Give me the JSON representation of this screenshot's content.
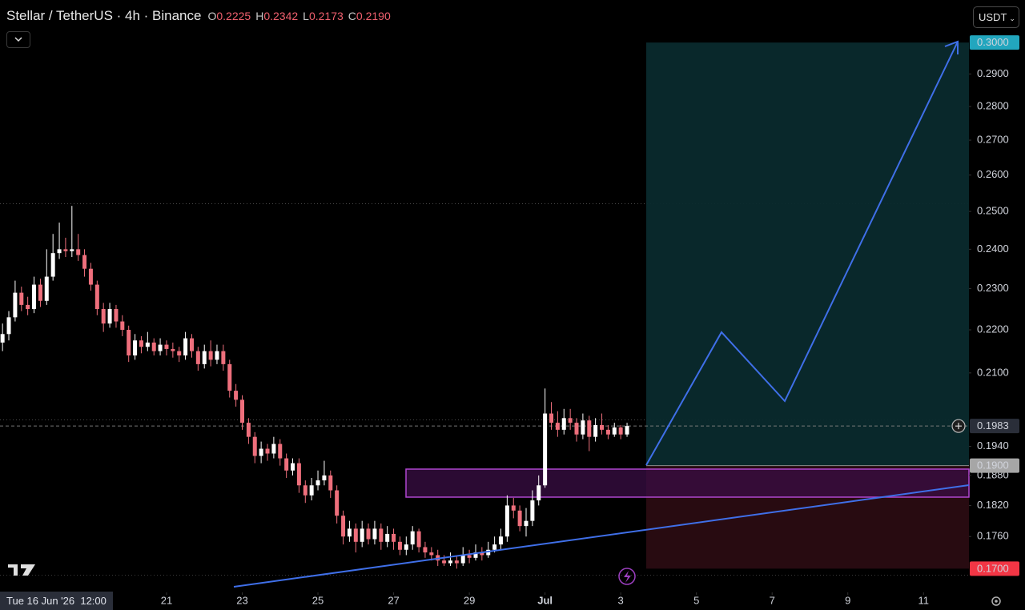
{
  "header": {
    "symbol": "Stellar / TetherUS · 4h · Binance",
    "ohlc": [
      {
        "name": "O",
        "text": "0.2225"
      },
      {
        "name": "H",
        "text": "0.2342"
      },
      {
        "name": "L",
        "text": "0.2173"
      },
      {
        "name": "C",
        "text": "0.2190"
      }
    ],
    "currency": "USDT"
  },
  "chart_data": {
    "type": "candlestick",
    "log": true,
    "up_color": "#ffffff",
    "down_color": "#ee6f7c",
    "xlim": [
      16.6,
      42.2
    ],
    "ylim": [
      0.1657,
      0.3141
    ],
    "xticks": [
      21,
      23,
      25,
      27,
      29,
      {
        "value": 31,
        "label": "Jul"
      },
      {
        "value": 33,
        "label": "3"
      },
      {
        "value": 35,
        "label": "5"
      },
      {
        "value": 37,
        "label": "7"
      },
      {
        "value": 39,
        "label": "9"
      },
      {
        "value": 41,
        "label": "11"
      }
    ],
    "yticks": [
      {
        "value": 0.29,
        "label": "0.2900"
      },
      {
        "value": 0.28,
        "label": "0.2800"
      },
      {
        "value": 0.27,
        "label": "0.2700"
      },
      {
        "value": 0.26,
        "label": "0.2600"
      },
      {
        "value": 0.25,
        "label": "0.2500"
      },
      {
        "value": 0.24,
        "label": "0.2400"
      },
      {
        "value": 0.23,
        "label": "0.2300"
      },
      {
        "value": 0.22,
        "label": "0.2200"
      },
      {
        "value": 0.21,
        "label": "0.2100"
      },
      {
        "value": 0.194,
        "label": "0.1940"
      },
      {
        "value": 0.188,
        "label": "0.1880"
      },
      {
        "value": 0.182,
        "label": "0.1820"
      },
      {
        "value": 0.176,
        "label": "0.1760"
      }
    ],
    "crosshair_time": "Tue 16 Jun '26  12:00",
    "last_price": {
      "value": 0.1983,
      "label": "0.1983"
    },
    "position": {
      "target": {
        "value": 0.3,
        "label": "0.3000"
      },
      "entry": {
        "value": 0.19,
        "label": "0.1900"
      },
      "stop": {
        "value": 0.17,
        "label": "0.1700"
      }
    },
    "x": [
      16.667,
      16.833,
      17,
      17.167,
      17.333,
      17.5,
      17.667,
      17.833,
      18,
      18.167,
      18.333,
      18.5,
      18.667,
      18.833,
      19,
      19.167,
      19.333,
      19.5,
      19.667,
      19.833,
      20,
      20.167,
      20.333,
      20.5,
      20.667,
      20.833,
      21,
      21.167,
      21.333,
      21.5,
      21.667,
      21.833,
      22,
      22.167,
      22.333,
      22.5,
      22.667,
      22.833,
      23,
      23.167,
      23.333,
      23.5,
      23.667,
      23.833,
      24,
      24.167,
      24.333,
      24.5,
      24.667,
      24.833,
      25,
      25.167,
      25.333,
      25.5,
      25.667,
      25.833,
      26,
      26.167,
      26.333,
      26.5,
      26.667,
      26.833,
      27,
      27.167,
      27.333,
      27.5,
      27.667,
      27.833,
      28,
      28.167,
      28.333,
      28.5,
      28.667,
      28.833,
      29,
      29.167,
      29.333,
      29.5,
      29.667,
      29.833,
      30,
      30.167,
      30.333,
      30.5,
      30.667,
      30.833,
      31,
      31.167,
      31.333,
      31.5,
      31.667,
      31.833,
      32,
      32.167,
      32.333,
      32.5,
      32.667,
      32.833,
      33,
      33.167
    ],
    "open": [
      0.217,
      0.219,
      0.223,
      0.229,
      0.226,
      0.225,
      0.231,
      0.227,
      0.233,
      0.239,
      0.24,
      0.2395,
      0.24,
      0.2385,
      0.235,
      0.231,
      0.225,
      0.2215,
      0.225,
      0.222,
      0.22,
      0.214,
      0.2175,
      0.216,
      0.217,
      0.215,
      0.2165,
      0.2155,
      0.215,
      0.214,
      0.218,
      0.215,
      0.212,
      0.215,
      0.213,
      0.215,
      0.212,
      0.206,
      0.204,
      0.199,
      0.196,
      0.192,
      0.1935,
      0.1925,
      0.1945,
      0.1915,
      0.189,
      0.1905,
      0.186,
      0.184,
      0.186,
      0.187,
      0.188,
      0.185,
      0.18,
      0.176,
      0.1775,
      0.175,
      0.1775,
      0.1755,
      0.1775,
      0.175,
      0.1765,
      0.175,
      0.1735,
      0.1745,
      0.177,
      0.174,
      0.173,
      0.1725,
      0.1715,
      0.171,
      0.1715,
      0.171,
      0.1725,
      0.172,
      0.173,
      0.1725,
      0.1735,
      0.1745,
      0.176,
      0.182,
      0.181,
      0.178,
      0.179,
      0.183,
      0.186,
      0.201,
      0.199,
      0.1975,
      0.2,
      0.199,
      0.1965,
      0.1995,
      0.196,
      0.1985,
      0.1975,
      0.1965,
      0.198,
      0.1965
    ],
    "high": [
      0.2215,
      0.2245,
      0.232,
      0.2305,
      0.228,
      0.233,
      0.2325,
      0.24,
      0.244,
      0.247,
      0.243,
      0.2515,
      0.244,
      0.24,
      0.2365,
      0.232,
      0.2265,
      0.2265,
      0.226,
      0.2235,
      0.221,
      0.219,
      0.2185,
      0.2195,
      0.218,
      0.218,
      0.2175,
      0.217,
      0.216,
      0.2195,
      0.219,
      0.216,
      0.2165,
      0.2175,
      0.2165,
      0.2165,
      0.213,
      0.2075,
      0.205,
      0.2,
      0.197,
      0.195,
      0.1945,
      0.196,
      0.1955,
      0.1925,
      0.1915,
      0.1915,
      0.187,
      0.1875,
      0.189,
      0.191,
      0.189,
      0.186,
      0.181,
      0.179,
      0.1785,
      0.179,
      0.1785,
      0.179,
      0.1785,
      0.178,
      0.1775,
      0.176,
      0.176,
      0.178,
      0.1775,
      0.175,
      0.174,
      0.1735,
      0.1725,
      0.173,
      0.1725,
      0.174,
      0.1735,
      0.1745,
      0.174,
      0.175,
      0.176,
      0.1775,
      0.184,
      0.1835,
      0.182,
      0.1815,
      0.185,
      0.188,
      0.2065,
      0.2035,
      0.2015,
      0.202,
      0.202,
      0.2,
      0.201,
      0.2005,
      0.2,
      0.201,
      0.1985,
      0.199,
      0.1985,
      0.199
    ],
    "low": [
      0.215,
      0.2175,
      0.222,
      0.2245,
      0.2235,
      0.224,
      0.2255,
      0.226,
      0.232,
      0.2375,
      0.238,
      0.238,
      0.237,
      0.233,
      0.2295,
      0.2235,
      0.2195,
      0.2205,
      0.2205,
      0.2185,
      0.2125,
      0.213,
      0.2145,
      0.215,
      0.214,
      0.214,
      0.214,
      0.2135,
      0.2125,
      0.213,
      0.2135,
      0.2105,
      0.211,
      0.2115,
      0.212,
      0.2105,
      0.2045,
      0.2025,
      0.1975,
      0.1945,
      0.1905,
      0.1905,
      0.191,
      0.1915,
      0.19,
      0.1875,
      0.188,
      0.1845,
      0.1825,
      0.183,
      0.185,
      0.186,
      0.1835,
      0.1785,
      0.1745,
      0.175,
      0.173,
      0.174,
      0.1745,
      0.1745,
      0.1735,
      0.174,
      0.1735,
      0.1725,
      0.1725,
      0.1735,
      0.173,
      0.172,
      0.1715,
      0.1705,
      0.1705,
      0.1705,
      0.17,
      0.1705,
      0.171,
      0.1715,
      0.1715,
      0.172,
      0.173,
      0.1735,
      0.175,
      0.1795,
      0.177,
      0.176,
      0.178,
      0.182,
      0.1855,
      0.1975,
      0.196,
      0.1965,
      0.1975,
      0.195,
      0.1955,
      0.193,
      0.195,
      0.1965,
      0.1955,
      0.196,
      0.1955,
      0.196
    ],
    "close": [
      0.219,
      0.223,
      0.229,
      0.226,
      0.225,
      0.231,
      0.227,
      0.233,
      0.239,
      0.24,
      0.2395,
      0.24,
      0.2385,
      0.235,
      0.231,
      0.225,
      0.2215,
      0.225,
      0.222,
      0.22,
      0.214,
      0.2175,
      0.216,
      0.217,
      0.215,
      0.2165,
      0.2155,
      0.215,
      0.214,
      0.218,
      0.215,
      0.212,
      0.215,
      0.213,
      0.215,
      0.212,
      0.206,
      0.204,
      0.199,
      0.196,
      0.192,
      0.1935,
      0.1925,
      0.1945,
      0.1915,
      0.189,
      0.1905,
      0.186,
      0.184,
      0.186,
      0.187,
      0.188,
      0.185,
      0.18,
      0.176,
      0.1775,
      0.175,
      0.1775,
      0.1755,
      0.1775,
      0.175,
      0.1765,
      0.175,
      0.1735,
      0.1745,
      0.177,
      0.174,
      0.173,
      0.1725,
      0.1715,
      0.171,
      0.1715,
      0.171,
      0.1725,
      0.172,
      0.173,
      0.1725,
      0.1735,
      0.1745,
      0.176,
      0.182,
      0.181,
      0.178,
      0.179,
      0.183,
      0.186,
      0.201,
      0.199,
      0.1975,
      0.2,
      0.199,
      0.1965,
      0.1995,
      0.196,
      0.1985,
      0.1975,
      0.1965,
      0.198,
      0.1965,
      0.1983
    ]
  }
}
